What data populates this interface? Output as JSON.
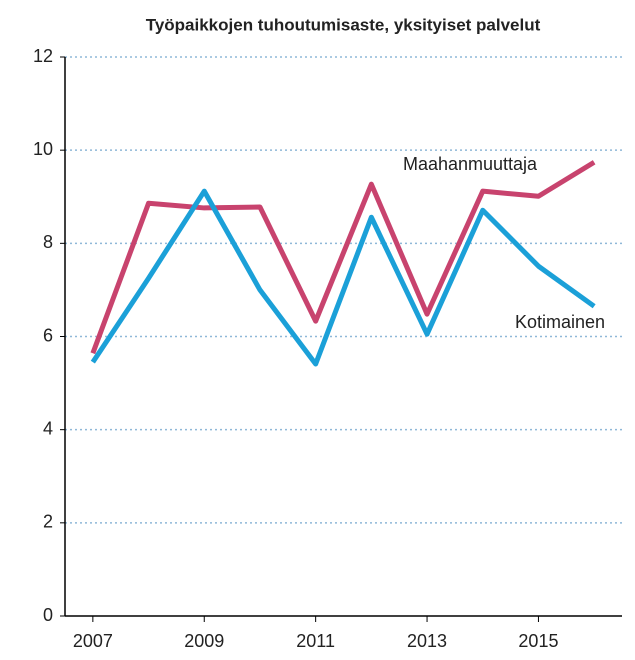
{
  "chart_data": {
    "type": "line",
    "title": "Työpaikkojen tuhoutumisaste, yksityiset palvelut",
    "x": [
      2007,
      2008,
      2009,
      2010,
      2011,
      2012,
      2013,
      2014,
      2015,
      2016
    ],
    "series": [
      {
        "name": "Maahanmuuttaja",
        "color": "#c8436e",
        "values": [
          5.64,
          8.86,
          8.76,
          8.78,
          6.33,
          9.27,
          6.48,
          9.12,
          9.01,
          9.74
        ]
      },
      {
        "name": "Kotimainen",
        "color": "#1ba0d8",
        "values": [
          5.45,
          7.25,
          9.12,
          7.0,
          5.41,
          8.56,
          6.05,
          8.71,
          7.51,
          6.65
        ]
      }
    ],
    "xlim": [
      2006.5,
      2016.5
    ],
    "xticks": [
      2007,
      2009,
      2011,
      2013,
      2015
    ],
    "ylim": [
      0,
      12
    ],
    "yticks": [
      0,
      2,
      4,
      6,
      8,
      10,
      12
    ],
    "grid": true
  }
}
